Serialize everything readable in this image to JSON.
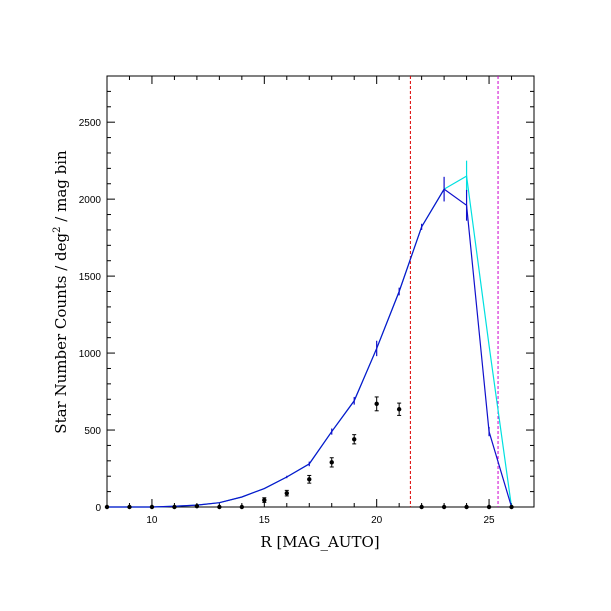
{
  "chart_data": {
    "type": "line",
    "xlabel": "R [MAG_AUTO]",
    "ylabel": {
      "prefix": "Star Number Counts / deg",
      "sup": "2",
      "suffix": " / mag bin"
    },
    "xlim": [
      8,
      27
    ],
    "ylim": [
      0,
      2800
    ],
    "x_ticks": [
      10,
      15,
      20,
      25
    ],
    "y_ticks": [
      0,
      500,
      1000,
      1500,
      2000,
      2500
    ],
    "x_minor_step": 1,
    "y_minor_step": 100,
    "vertical_lines": [
      {
        "x": 21.5,
        "color": "#dd0000"
      },
      {
        "x": 25.4,
        "color": "#cc00cc"
      }
    ],
    "series": [
      {
        "style": "line",
        "color": "#00e0e0",
        "x": [
          8,
          9,
          10,
          11,
          12,
          13,
          14,
          15,
          16,
          17,
          18,
          19,
          20,
          21,
          22,
          23,
          24,
          25,
          26
        ],
        "y": [
          0,
          0,
          0,
          5,
          12,
          28,
          65,
          120,
          195,
          280,
          490,
          690,
          1030,
          1400,
          1820,
          2065,
          2150,
          1050,
          0
        ],
        "err": [
          0,
          0,
          0,
          0,
          0,
          0,
          0,
          0,
          0,
          0,
          0,
          0,
          0,
          0,
          0,
          0,
          100,
          0,
          0
        ]
      },
      {
        "style": "line",
        "color": "#1010cc",
        "x": [
          8,
          9,
          10,
          11,
          12,
          13,
          14,
          15,
          16,
          17,
          18,
          19,
          20,
          21,
          22,
          23,
          24,
          25,
          26
        ],
        "y": [
          0,
          0,
          0,
          5,
          12,
          28,
          65,
          120,
          195,
          280,
          490,
          690,
          1030,
          1400,
          1820,
          2065,
          1960,
          490,
          0
        ],
        "err": [
          0,
          0,
          0,
          0,
          0,
          0,
          0,
          0,
          8,
          15,
          20,
          25,
          50,
          25,
          20,
          80,
          100,
          30,
          0
        ]
      },
      {
        "style": "points",
        "color": "#000000",
        "x": [
          8,
          9,
          10,
          11,
          12,
          13,
          14,
          15,
          16,
          17,
          18,
          19,
          20,
          21,
          22,
          23,
          24,
          25,
          26
        ],
        "y": [
          0,
          0,
          0,
          0,
          5,
          0,
          0,
          45,
          90,
          180,
          290,
          440,
          670,
          635,
          0,
          0,
          0,
          0,
          0
        ],
        "err": [
          0,
          0,
          0,
          0,
          0,
          0,
          0,
          15,
          18,
          25,
          30,
          30,
          45,
          40,
          0,
          0,
          0,
          0,
          0
        ]
      }
    ]
  }
}
